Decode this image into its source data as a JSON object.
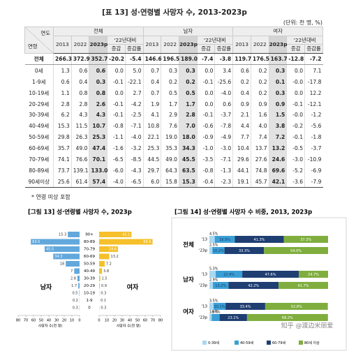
{
  "table": {
    "title": "[표 13] 성·연령별 사망자 수, 2013-2023p",
    "unit": "(단위: 천 명, %)",
    "corner_top": "연도",
    "corner_bottom": "연령",
    "groups": [
      "전체",
      "남자",
      "여자"
    ],
    "years": [
      "2013",
      "2022",
      "2023p"
    ],
    "compare": "'22년대비",
    "diff": "증감",
    "rate": "증감률",
    "rows": [
      {
        "label": "전체",
        "cells": [
          "266.3",
          "372.9",
          "352.7",
          "-20.2",
          "-5.4",
          "146.6",
          "196.5",
          "189.0",
          "-7.4",
          "-3.8",
          "119.7",
          "176.5",
          "163.7",
          "-12.8",
          "-7.2"
        ]
      },
      {
        "label": "0세",
        "cells": [
          "1.3",
          "0.6",
          "0.6",
          "0.0",
          "5.0",
          "0.7",
          "0.3",
          "0.3",
          "0.0",
          "3.4",
          "0.6",
          "0.2",
          "0.3",
          "0.0",
          "7.1"
        ]
      },
      {
        "label": "1-9세",
        "cells": [
          "0.6",
          "0.4",
          "0.3",
          "-0.1",
          "-22.1",
          "0.4",
          "0.2",
          "0.2",
          "-0.1",
          "-25.6",
          "0.2",
          "0.2",
          "0.1",
          "-0.0",
          "-17.8"
        ]
      },
      {
        "label": "10-19세",
        "cells": [
          "1.1",
          "0.8",
          "0.8",
          "0.0",
          "2.7",
          "0.7",
          "0.5",
          "0.5",
          "0.0",
          "-4.0",
          "0.4",
          "0.2",
          "0.3",
          "0.0",
          "12.2"
        ]
      },
      {
        "label": "20-29세",
        "cells": [
          "2.8",
          "2.8",
          "2.6",
          "-0.1",
          "-4.2",
          "1.9",
          "1.7",
          "1.7",
          "0.0",
          "0.6",
          "0.9",
          "0.9",
          "0.9",
          "-0.1",
          "-12.1"
        ]
      },
      {
        "label": "30-39세",
        "cells": [
          "6.2",
          "4.3",
          "4.3",
          "-0.1",
          "-2.5",
          "4.1",
          "2.9",
          "2.8",
          "-0.1",
          "-3.7",
          "2.1",
          "1.6",
          "1.5",
          "-0.0",
          "-1.2"
        ]
      },
      {
        "label": "40-49세",
        "cells": [
          "15.3",
          "11.5",
          "10.7",
          "-0.8",
          "-7.1",
          "10.8",
          "7.6",
          "7.0",
          "-0.6",
          "-7.8",
          "4.4",
          "4.0",
          "3.8",
          "-0.2",
          "-5.6"
        ]
      },
      {
        "label": "50-59세",
        "cells": [
          "29.8",
          "26.3",
          "25.3",
          "-1.1",
          "-4.0",
          "22.1",
          "19.0",
          "18.0",
          "-0.9",
          "-4.9",
          "7.7",
          "7.4",
          "7.2",
          "-0.1",
          "-1.8"
        ]
      },
      {
        "label": "60-69세",
        "cells": [
          "35.7",
          "49.0",
          "47.4",
          "-1.6",
          "-3.2",
          "25.3",
          "35.3",
          "34.3",
          "-1.0",
          "-3.0",
          "10.4",
          "13.7",
          "13.2",
          "-0.5",
          "-3.7"
        ]
      },
      {
        "label": "70-79세",
        "cells": [
          "74.1",
          "76.6",
          "70.1",
          "-6.5",
          "-8.5",
          "44.5",
          "49.0",
          "45.5",
          "-3.5",
          "-7.1",
          "29.6",
          "27.6",
          "24.6",
          "-3.0",
          "-10.9"
        ]
      },
      {
        "label": "80-89세",
        "cells": [
          "73.7",
          "139.1",
          "133.0",
          "-6.0",
          "-4.3",
          "29.7",
          "64.3",
          "63.5",
          "-0.8",
          "-1.3",
          "44.1",
          "74.8",
          "69.6",
          "-5.2",
          "-6.9"
        ]
      },
      {
        "label": "90세이상",
        "cells": [
          "25.6",
          "61.4",
          "57.4",
          "-4.0",
          "-6.5",
          "6.0",
          "15.8",
          "15.3",
          "-0.4",
          "-2.3",
          "19.1",
          "45.7",
          "42.1",
          "-3.6",
          "-7.9"
        ]
      }
    ],
    "footnote": "* 연령 미상 포함"
  },
  "chart_data": [
    {
      "type": "pyramid",
      "title": "[그림 13] 성·연령별 사망자 수, 2023p",
      "categories": [
        "90+",
        "80-89",
        "70-79",
        "60-69",
        "50-59",
        "40-49",
        "30-39",
        "20-29",
        "10-19",
        "1-9",
        "0"
      ],
      "series": [
        {
          "name": "남자",
          "color": "#62a8dc",
          "values": [
            15.3,
            63.5,
            45.5,
            34.3,
            18.0,
            7.0,
            2.8,
            1.7,
            0.5,
            0.2,
            0.3
          ]
        },
        {
          "name": "여자",
          "color": "#f5c02a",
          "values": [
            42.1,
            69.6,
            24.6,
            13.2,
            7.2,
            3.8,
            1.5,
            0.9,
            0.3,
            0.1,
            0.3
          ]
        }
      ],
      "xlim": [
        0,
        80
      ],
      "xticks": [
        0,
        10,
        20,
        30,
        40,
        50,
        60,
        70,
        80
      ],
      "xlabel": "사망자 수(천 명)"
    },
    {
      "type": "stacked_bar_h",
      "title": "[그림 14] 성·연령별 사망자 수 비중, 2013, 2023p",
      "groups": [
        "전체",
        "남자",
        "여자"
      ],
      "categories": [
        "'13",
        "'23p",
        "'13",
        "'23p",
        "'13",
        "'23p"
      ],
      "series": [
        {
          "name": "0-39세",
          "color": "#a9d8f2",
          "values": [
            4.5,
            2.5,
            5.3,
            2.9,
            3.5,
            1.9
          ],
          "value_labels": [
            "4.5%",
            "2.5%",
            "5.3%",
            "2.9%",
            "3.5%",
            "1.9%"
          ]
        },
        {
          "name": "40-59세",
          "color": "#3a9fd6",
          "values": [
            16.9,
            10.2,
            22.4,
            13.2,
            10.1,
            6.7
          ],
          "value_labels": [
            "16.9%",
            "10.2%",
            "22.4%",
            "13.2%",
            "10.1%",
            "6.7%"
          ]
        },
        {
          "name": "60-79세",
          "color": "#1f3e72",
          "values": [
            41.3,
            33.3,
            47.6,
            42.2,
            33.4,
            23.1
          ],
          "value_labels": [
            "41.3%",
            "33.3%",
            "47.6%",
            "42.2%",
            "33.4%",
            "23.1%"
          ]
        },
        {
          "name": "80세 이상",
          "color": "#7fae3e",
          "values": [
            37.3,
            54.0,
            24.7,
            41.7,
            52.8,
            68.2
          ],
          "value_labels": [
            "37.3%",
            "54.0%",
            "24.7%",
            "41.7%",
            "52.8%",
            "68.2%"
          ]
        }
      ],
      "xlim": [
        0,
        100
      ]
    }
  ],
  "watermark": "知乎 @渡边米丽爱"
}
